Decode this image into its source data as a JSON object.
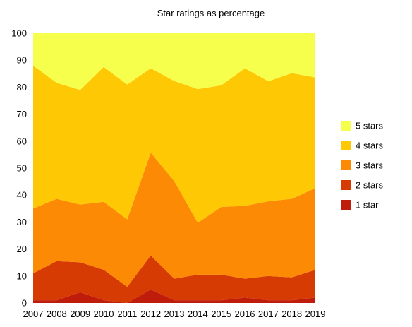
{
  "chart_data": {
    "type": "area",
    "stacked": true,
    "title": "Star ratings as percentage",
    "xlabel": "",
    "ylabel": "",
    "ylim": [
      0,
      100
    ],
    "yticks": [
      "0",
      "10",
      "20",
      "30",
      "40",
      "50",
      "60",
      "70",
      "80",
      "90",
      "100"
    ],
    "categories": [
      "2007",
      "2008",
      "2009",
      "2010",
      "2011",
      "2012",
      "2013",
      "2014",
      "2015",
      "2016",
      "2017",
      "2018",
      "2019"
    ],
    "grid": false,
    "legend_position": "right",
    "series": [
      {
        "name": "1 star",
        "color": "#c01c0c",
        "values": [
          1,
          1,
          4,
          1,
          0,
          5,
          1,
          1,
          1,
          2,
          1,
          1,
          2
        ]
      },
      {
        "name": "2 stars",
        "color": "#d63b04",
        "values": [
          10,
          14.5,
          11.1,
          11.3,
          6.0,
          12.6,
          8.0,
          9.5,
          9.5,
          7.0,
          9.0,
          8.5,
          10.3
        ]
      },
      {
        "name": "3 stars",
        "color": "#fd8a04",
        "values": [
          24,
          23.1,
          21.4,
          25.2,
          25,
          38.1,
          36.2,
          19.2,
          25.1,
          27.0,
          27.7,
          29.1,
          30.3
        ]
      },
      {
        "name": "4 stars",
        "color": "#fec804",
        "values": [
          53,
          43,
          42.5,
          50,
          50,
          31.3,
          37.1,
          49.6,
          45.1,
          51.0,
          44.5,
          46.6,
          41.0
        ]
      },
      {
        "name": "5 stars",
        "color": "#f6ff4c",
        "values": [
          12,
          18.4,
          21,
          12.5,
          19,
          13,
          17.7,
          20.7,
          19.3,
          13,
          17.8,
          14.8,
          16.4
        ]
      }
    ]
  }
}
